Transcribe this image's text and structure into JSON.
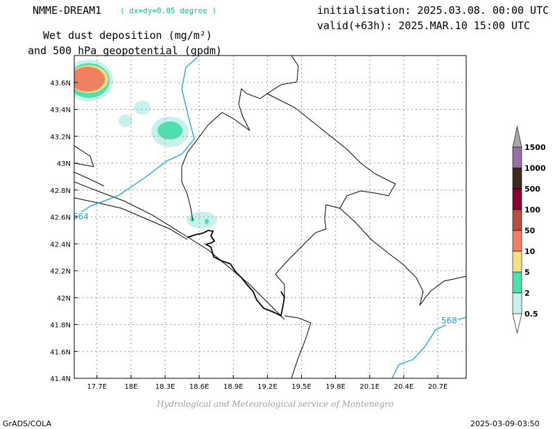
{
  "header": {
    "model": "NMME-DREAM1",
    "resolution": "( dx=dy=0.05 degree )",
    "product_line1": "Wet dust deposition (mg/m²)",
    "product_line2": "and 500 hPa geopotential (gpdm)",
    "initialisation": "initialisation: 2025.03.08. 00:00 UTC",
    "valid": "valid(+63h): 2025.MAR.10 15:00 UTC"
  },
  "map": {
    "lon_range": [
      17.5,
      20.95
    ],
    "lat_range": [
      41.4,
      43.8
    ],
    "lon_ticks": [
      "17.7E",
      "18E",
      "18.3E",
      "18.6E",
      "18.9E",
      "19.2E",
      "19.5E",
      "19.8E",
      "20.1E",
      "20.4E",
      "20.7E"
    ],
    "lat_ticks": [
      "41.4N",
      "41.6N",
      "41.8N",
      "42N",
      "42.2N",
      "42.4N",
      "42.6N",
      "42.8N",
      "43N",
      "43.2N",
      "43.4N",
      "43.6N"
    ],
    "grid": true,
    "geopotential_contours": [
      {
        "label": "564",
        "color": "#1aa0e6"
      },
      {
        "label": "568",
        "color": "#1aa0e6"
      }
    ]
  },
  "legend": {
    "levels": [
      {
        "label": "1500",
        "color": "#a8a8a8"
      },
      {
        "label": "1000",
        "color": "#9a6fa8"
      },
      {
        "label": "500",
        "color": "#3d2a1e"
      },
      {
        "label": "100",
        "color": "#8a0030"
      },
      {
        "label": "50",
        "color": "#b85040"
      },
      {
        "label": "10",
        "color": "#f08060"
      },
      {
        "label": "5",
        "color": "#f8e080"
      },
      {
        "label": "2",
        "color": "#50e0b0"
      },
      {
        "label": "0.5",
        "color": "#c8f0ec"
      }
    ]
  },
  "footer": {
    "credit": "Hydrological and Meteorological service of Montenegro",
    "left": "GrADS/COLA",
    "right": "2025-03-09-03:50"
  }
}
